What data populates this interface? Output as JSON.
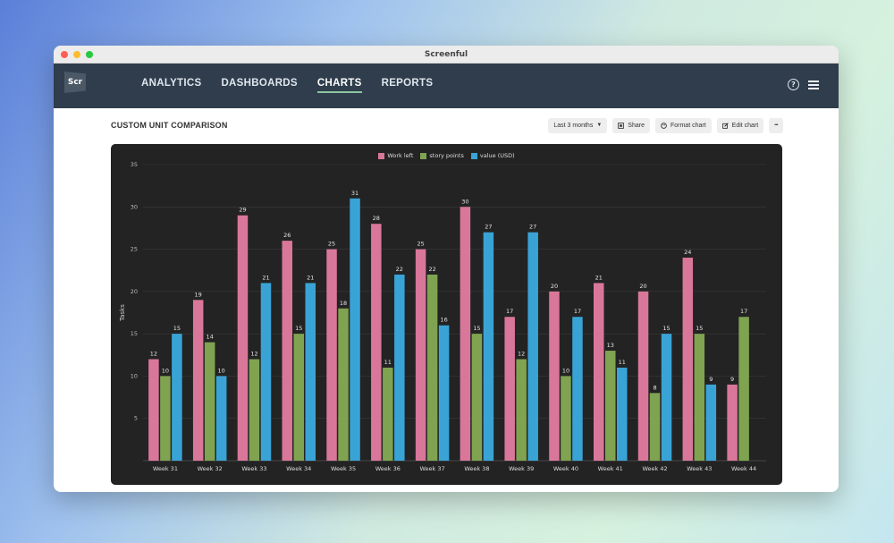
{
  "window": {
    "title": "Screenful"
  },
  "logo": {
    "text": "Scr"
  },
  "nav": {
    "items": [
      {
        "label": "ANALYTICS",
        "active": false
      },
      {
        "label": "DASHBOARDS",
        "active": false
      },
      {
        "label": "CHARTS",
        "active": true
      },
      {
        "label": "REPORTS",
        "active": false
      }
    ],
    "help_glyph": "?"
  },
  "toolbar": {
    "title": "CUSTOM UNIT COMPARISON",
    "range_label": "Last 3 months",
    "share_label": "Share",
    "format_label": "Format chart",
    "edit_label": "Edit chart",
    "more_label": "•••"
  },
  "colors": {
    "work_left": "#d9779a",
    "story_points": "#7fa350",
    "value_usd": "#3aa3d6"
  },
  "chart_data": {
    "type": "bar",
    "categories": [
      "Week 31",
      "Week 32",
      "Week 33",
      "Week 34",
      "Week 35",
      "Week 36",
      "Week 37",
      "Week 38",
      "Week 39",
      "Week 40",
      "Week 41",
      "Week 42",
      "Week 43",
      "Week 44"
    ],
    "series": [
      {
        "name": "Work left",
        "color": "#d9779a",
        "values": [
          12,
          19,
          29,
          26,
          25,
          28,
          25,
          30,
          17,
          20,
          21,
          20,
          24,
          9
        ]
      },
      {
        "name": "story points",
        "color": "#7fa350",
        "values": [
          10,
          14,
          12,
          15,
          18,
          11,
          22,
          15,
          12,
          10,
          13,
          8,
          15,
          17
        ]
      },
      {
        "name": "value (USD)",
        "color": "#3aa3d6",
        "values": [
          15,
          10,
          21,
          21,
          31,
          22,
          16,
          27,
          27,
          17,
          11,
          15,
          9,
          null
        ]
      }
    ],
    "ylabel": "Tasks",
    "xlabel": "",
    "ylim": [
      0,
      35
    ],
    "yticks": [
      5,
      10,
      15,
      20,
      25,
      30,
      35
    ],
    "grid": true,
    "legend": "top-center",
    "data_labels": true
  }
}
